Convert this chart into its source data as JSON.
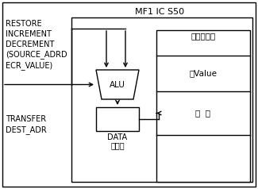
{
  "title": "MF1 IC S50",
  "bg_color": "#ffffff",
  "left_labels_top": "RESTORE\nINCREMENT\nDECREMENT\n(SOURCE_ADRD\nECR_VALUE)",
  "left_labels_bot": "TRANSFER\nDEST_ADR",
  "alu_label": "ALU",
  "data_reg_label": "DATA",
  "data_reg_label2": "寄存器",
  "memory_title": "芯片存储器",
  "source_value_label": "源Value",
  "result_label": "结  果",
  "font_size": 7.5,
  "font_size_title": 8.0,
  "font_size_small": 7.0,
  "lw": 1.0
}
